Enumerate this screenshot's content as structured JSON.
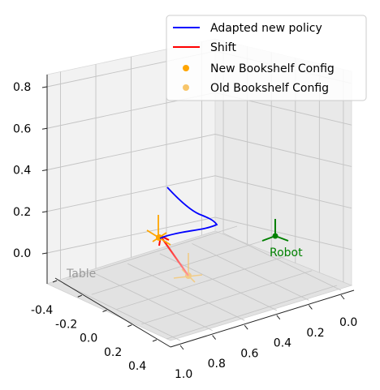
{
  "chart_data": {
    "type": "line",
    "projection": "3d",
    "title": "",
    "axes": {
      "x": {
        "ticks": [
          "1.0",
          "0.8",
          "0.6",
          "0.4",
          "0.2",
          "0.0"
        ]
      },
      "y": {
        "ticks": [
          "-0.4",
          "-0.2",
          "0.0",
          "0.2",
          "0.4"
        ]
      },
      "z": {
        "ticks": [
          "0.0",
          "0.2",
          "0.4",
          "0.6",
          "0.8"
        ]
      },
      "grid": true
    },
    "legend": {
      "placement": "top-right",
      "entries": [
        {
          "label": "Adapted new policy",
          "color": "#0000ff",
          "marker": "line"
        },
        {
          "label": "Shift",
          "color": "#ff0000",
          "marker": "line"
        },
        {
          "label": "New Bookshelf Config",
          "color": "#ffa500",
          "marker": "dot"
        },
        {
          "label": "Old Bookshelf Config",
          "color": "#f7c56a",
          "marker": "dot"
        }
      ]
    },
    "annotations": {
      "table": "Table",
      "robot": "Robot"
    },
    "colors": {
      "policy": "#0000ff",
      "shift": "#ff4444",
      "new_config": "#ffa500",
      "old_config": "#f7c56a",
      "robot": "#008000",
      "table": "#9a9a9a"
    }
  }
}
